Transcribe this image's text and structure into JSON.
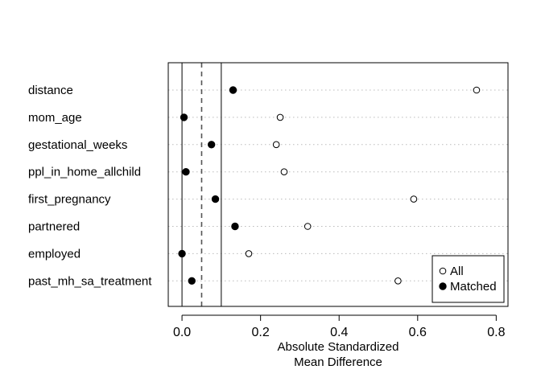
{
  "chart_data": {
    "type": "scatter",
    "title": "",
    "xlabel_lines": [
      "Absolute Standardized",
      "Mean Difference"
    ],
    "xlim": [
      -0.035,
      0.83
    ],
    "xticks": [
      0.0,
      0.2,
      0.4,
      0.6,
      0.8
    ],
    "xtick_labels": [
      "0.0",
      "0.2",
      "0.4",
      "0.6",
      "0.8"
    ],
    "reference_lines": {
      "solid": [
        0.0,
        0.1
      ],
      "dashed": [
        0.05
      ]
    },
    "grid": "dotted-horizontal",
    "legend_position": "bottom-right",
    "categories": [
      "distance",
      "mom_age",
      "gestational_weeks",
      "ppl_in_home_allchild",
      "first_pregnancy",
      "partnered",
      "employed",
      "past_mh_sa_treatment"
    ],
    "series": [
      {
        "name": "All",
        "marker": "open-circle",
        "values": [
          0.75,
          0.25,
          0.24,
          0.26,
          0.59,
          0.32,
          0.17,
          0.55
        ]
      },
      {
        "name": "Matched",
        "marker": "filled-circle",
        "values": [
          0.13,
          0.005,
          0.075,
          0.01,
          0.085,
          0.135,
          0.0,
          0.025
        ]
      }
    ]
  }
}
